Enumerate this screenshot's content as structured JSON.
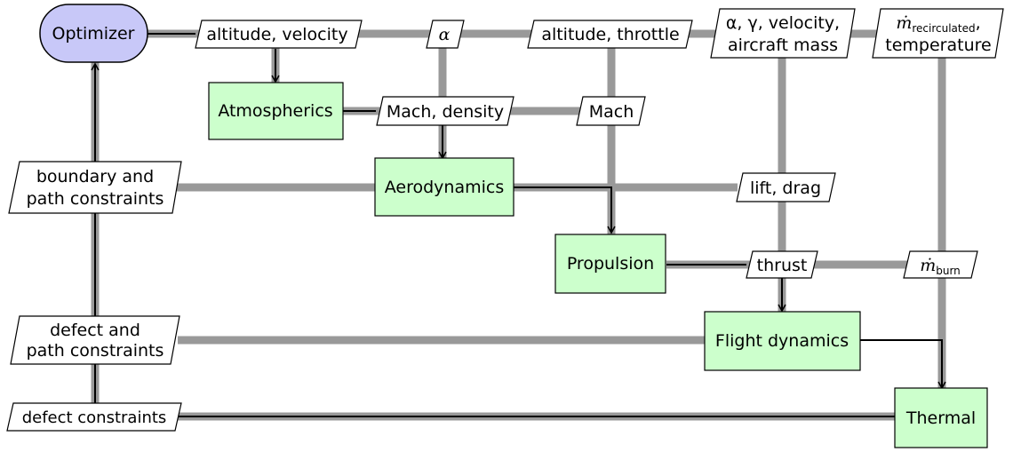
{
  "nodes": {
    "optimizer": "Optimizer",
    "atmospherics": "Atmospherics",
    "aerodynamics": "Aerodynamics",
    "propulsion": "Propulsion",
    "flight_dynamics": "Flight dynamics",
    "thermal": "Thermal"
  },
  "data_labels": {
    "altitude_velocity": "altitude, velocity",
    "alpha": "α",
    "altitude_throttle": "altitude, throttle",
    "alpha_gamma_velocity_line1": "α, γ, velocity,",
    "alpha_gamma_velocity_line2": "aircraft mass",
    "mdot_symbol": "ṁ",
    "recirculated_sub": "recirculated",
    "temperature": "temperature",
    "mach_density": "Mach, density",
    "mach": "Mach",
    "boundary_line1": "boundary and",
    "boundary_line2": "path constraints",
    "lift_drag": "lift, drag",
    "thrust": "thrust",
    "burn_sub": "burn",
    "defect_path_line1": "defect and",
    "defect_path_line2": "path constraints",
    "defect_constraints": "defect constraints"
  },
  "colors": {
    "optimizer_fill": "#c8c8f8",
    "component_fill": "#ccffcc",
    "data_line": "#999999",
    "stroke": "#000000"
  }
}
